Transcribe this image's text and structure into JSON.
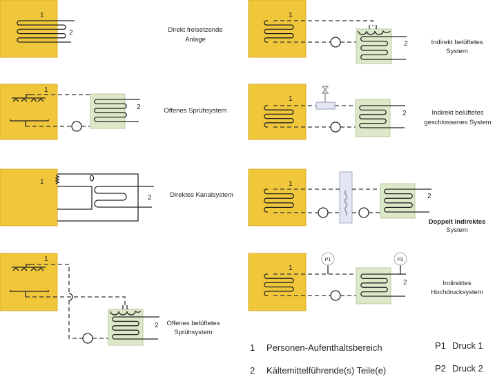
{
  "colors": {
    "zone_person": "#f0c63b",
    "zone_refrigerant": "#dde8c8",
    "heat_exchanger": "#e3e6f3"
  },
  "panels": [
    {
      "id": "direct-release",
      "label_1": "1",
      "label_2": "2",
      "caption": [
        "Direkt freisetzende",
        "Anlage"
      ]
    },
    {
      "id": "open-spray",
      "label_1": "1",
      "label_2": "2",
      "caption": [
        "Offenes Sprühsystem"
      ]
    },
    {
      "id": "direct-duct",
      "label_1": "1",
      "label_2": "2",
      "caption": [
        "Direktes Kanalsystem"
      ]
    },
    {
      "id": "open-vented-spray",
      "label_1": "1",
      "label_2": "2",
      "caption": [
        "Offenes belüftetes",
        "Sprühsystem"
      ]
    },
    {
      "id": "indirect-vented",
      "label_1": "1",
      "label_2": "2",
      "caption": [
        "Indirekt belüftetes",
        "System"
      ]
    },
    {
      "id": "indirect-vented-closed",
      "label_1": "1",
      "label_2": "2",
      "caption": [
        "Indirekt belüftetes",
        "geschlossenes System"
      ]
    },
    {
      "id": "double-indirect",
      "label_1": "1",
      "label_2": "2",
      "caption": [
        "Doppelt indirektes",
        "System"
      ]
    },
    {
      "id": "indirect-high-pressure",
      "label_1": "1",
      "label_2": "2",
      "p1": "P1",
      "p2": "P2",
      "caption": [
        "Indirektes",
        "Hochdrucksystem"
      ]
    }
  ],
  "legend": [
    {
      "key": "1",
      "text": "Personen-Aufenthaltsbereich"
    },
    {
      "key": "2",
      "text": "Kältemittelführende(s) Teile(e)"
    },
    {
      "key": "P1",
      "text": "Druck 1"
    },
    {
      "key": "P2",
      "text": "Druck 2"
    }
  ]
}
